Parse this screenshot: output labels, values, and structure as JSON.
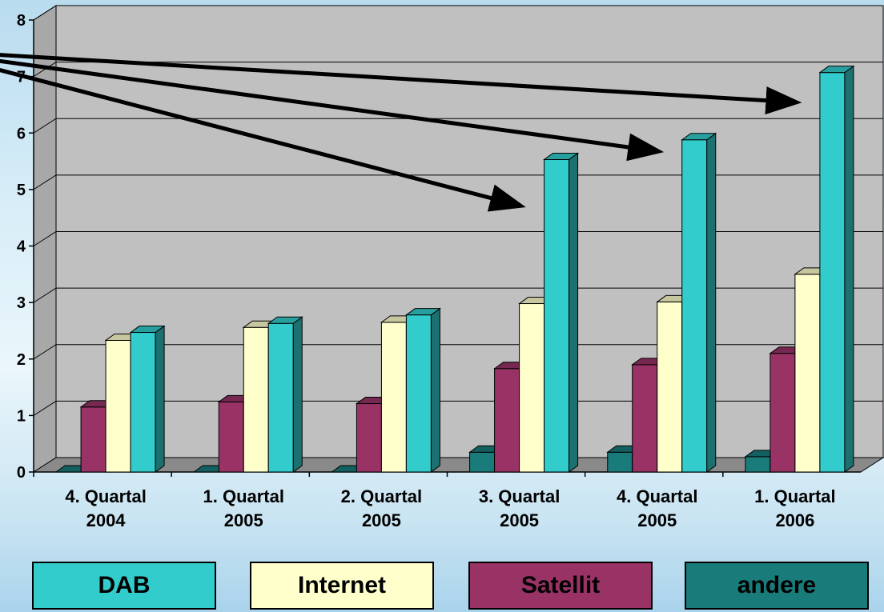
{
  "chart_data": {
    "type": "bar",
    "three_d": true,
    "categories": [
      [
        "4. Quartal",
        "2004"
      ],
      [
        "1. Quartal",
        "2005"
      ],
      [
        "2. Quartal",
        "2005"
      ],
      [
        "3. Quartal",
        "2005"
      ],
      [
        "4. Quartal",
        "2005"
      ],
      [
        "1. Quartal",
        "2006"
      ]
    ],
    "series": [
      {
        "name": "andere",
        "color": "#1a7b7b",
        "values": [
          0,
          0,
          0,
          0.35,
          0.35,
          0.27
        ]
      },
      {
        "name": "Satellit",
        "color": "#993366",
        "values": [
          1.15,
          1.24,
          1.21,
          1.83,
          1.9,
          2.1
        ]
      },
      {
        "name": "Internet",
        "color": "#ffffcc",
        "values": [
          2.33,
          2.56,
          2.65,
          2.98,
          3.01,
          3.5
        ]
      },
      {
        "name": "DAB",
        "color": "#33cccc",
        "values": [
          2.47,
          2.63,
          2.78,
          5.53,
          5.88,
          7.07
        ]
      }
    ],
    "y_ticks": [
      "0",
      "1",
      "2",
      "3",
      "4",
      "5",
      "6",
      "7",
      "8"
    ],
    "ylim": [
      0,
      8
    ],
    "grid": true,
    "legend_position": "bottom",
    "legend_order": [
      "DAB",
      "Internet",
      "Satellit",
      "andere"
    ],
    "annotations": [
      {
        "type": "arrow",
        "target": "DAB, 3. Quartal 2005"
      },
      {
        "type": "arrow",
        "target": "DAB, 4. Quartal 2005"
      },
      {
        "type": "arrow",
        "target": "DAB, 1. Quartal 2006"
      }
    ]
  }
}
